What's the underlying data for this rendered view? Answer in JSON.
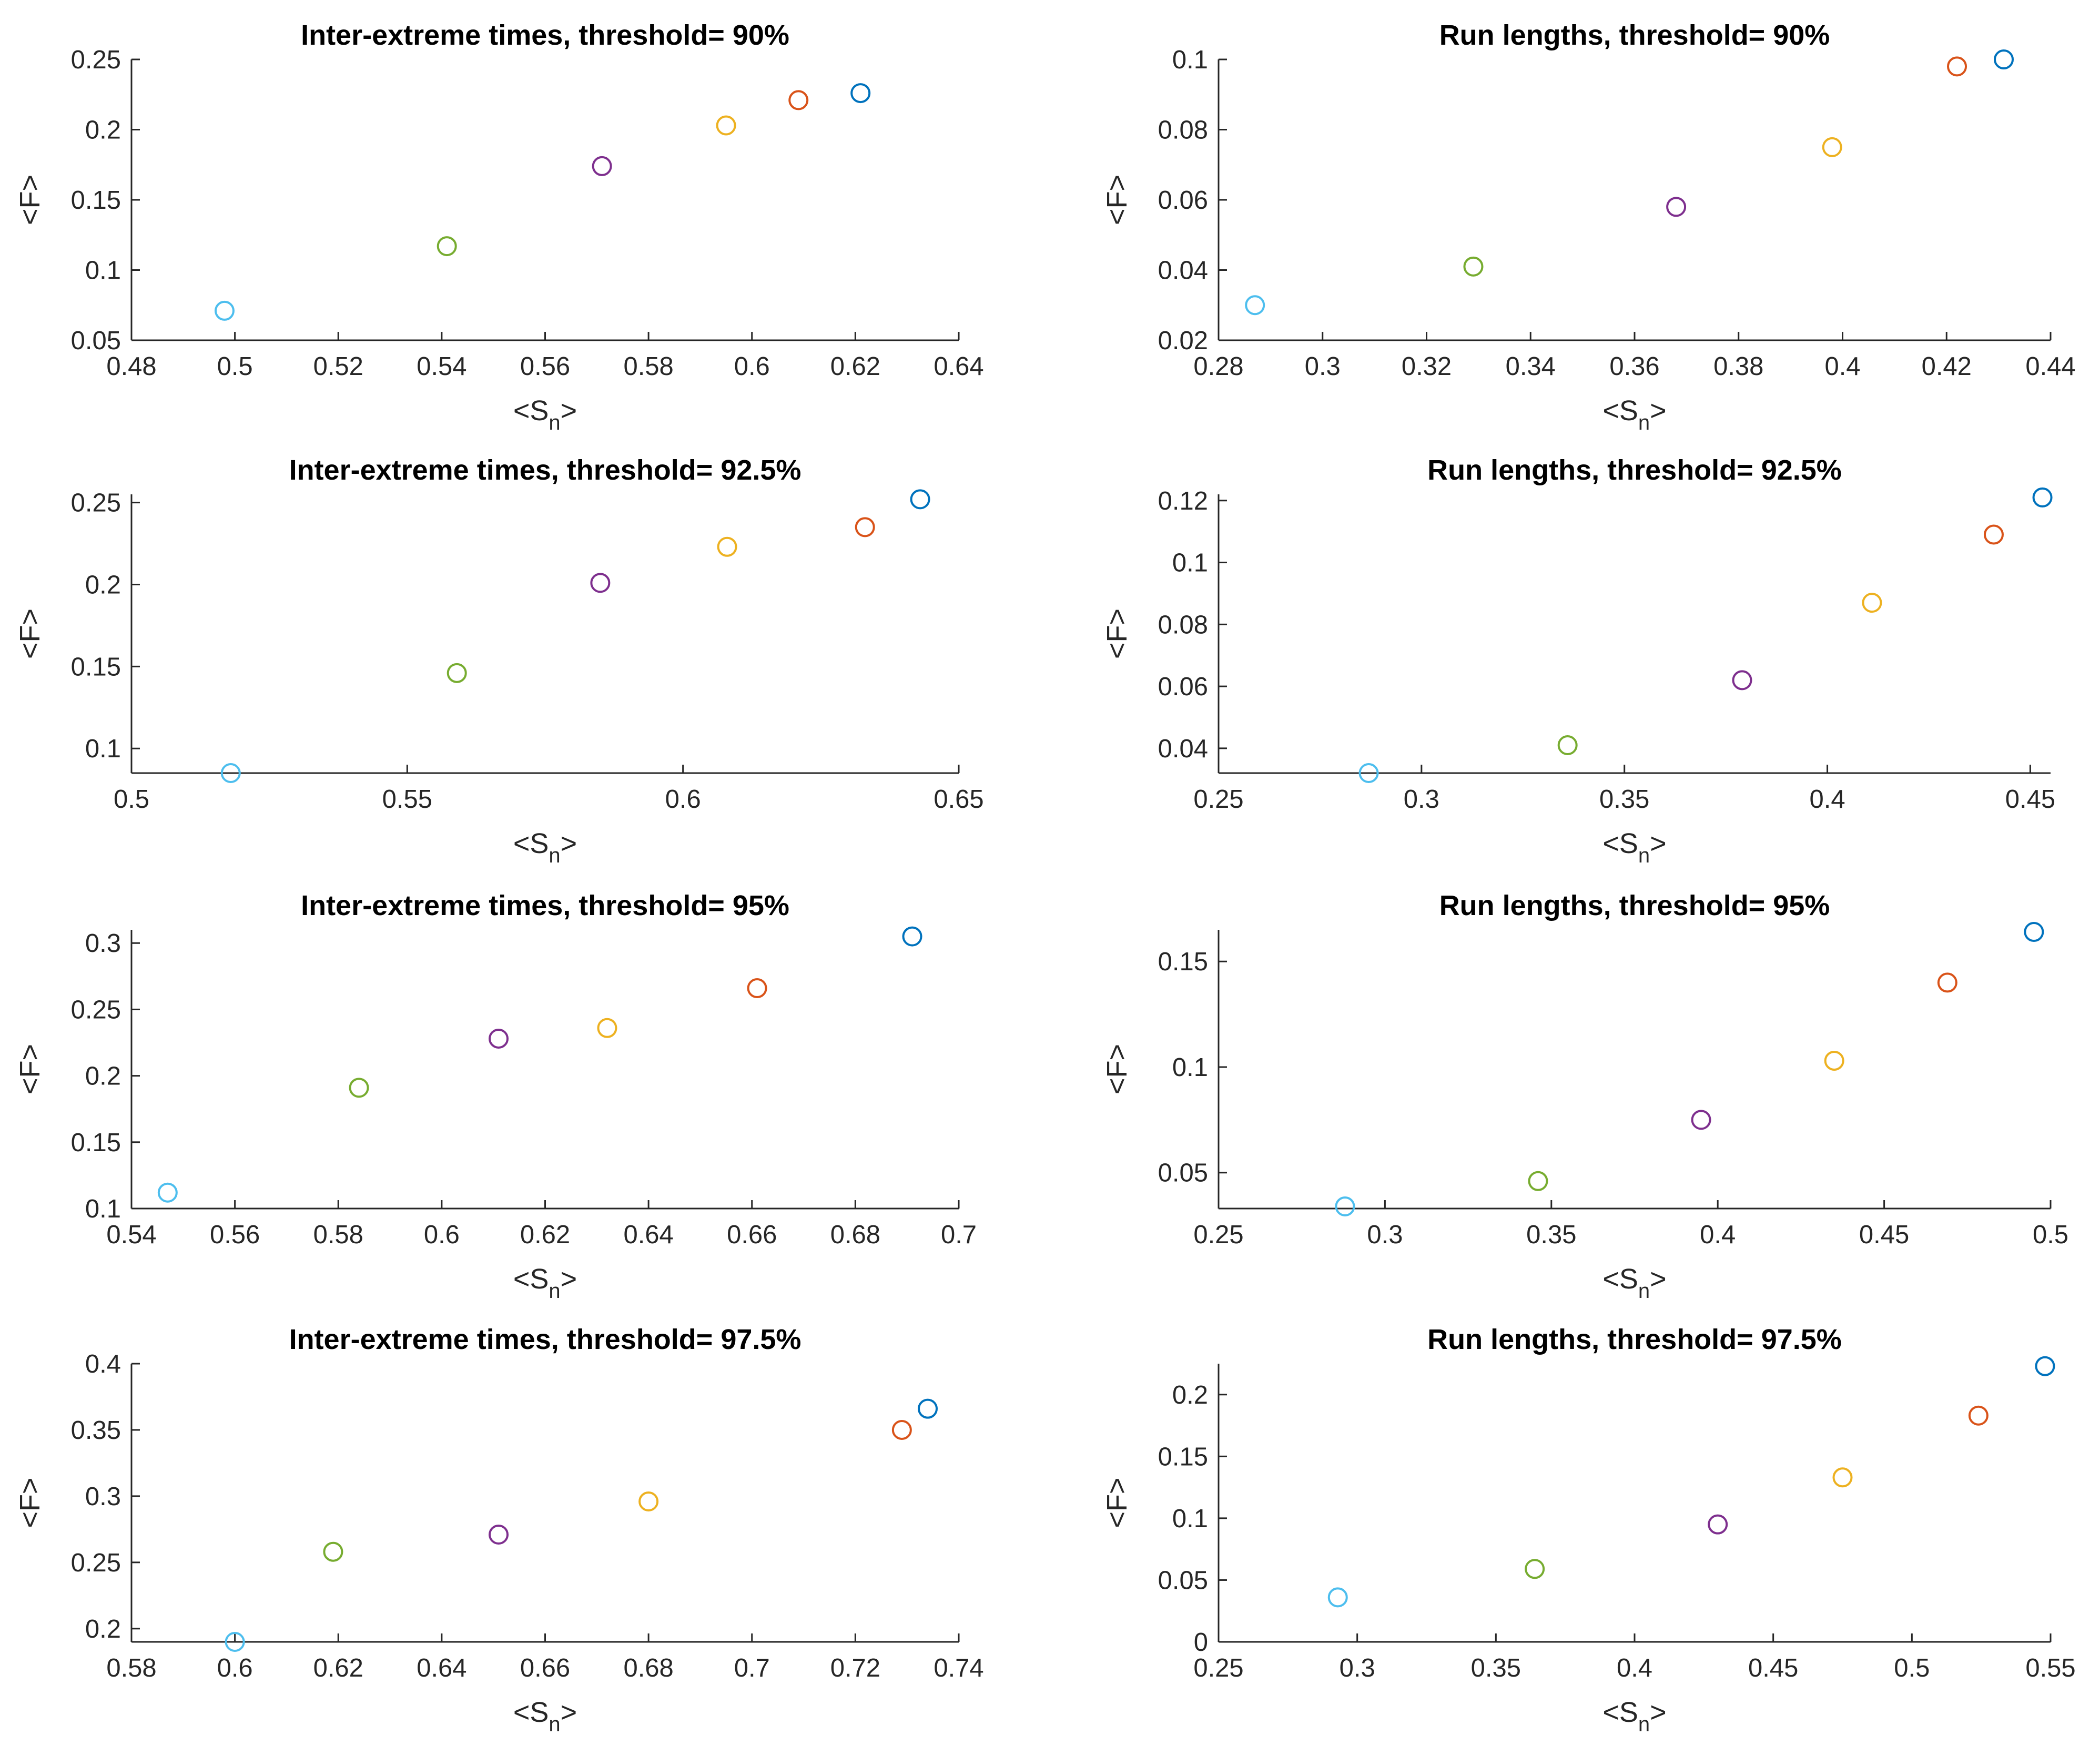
{
  "colors": [
    "#4DBEEE",
    "#77AC30",
    "#7E2F8E",
    "#EDB120",
    "#D95319",
    "#0072BD"
  ],
  "chart_data": [
    {
      "type": "scatter",
      "title": "Inter-extreme times, threshold= 90%",
      "xlabel": "<S",
      "xlabel_sub": "n",
      "xlabel_end": ">",
      "ylabel": "<F>",
      "x": [
        0.498,
        0.541,
        0.571,
        0.595,
        0.609,
        0.621
      ],
      "y": [
        0.071,
        0.117,
        0.174,
        0.203,
        0.221,
        0.226
      ],
      "xlim": [
        0.48,
        0.64
      ],
      "ylim": [
        0.05,
        0.25
      ],
      "xticks": [
        0.48,
        0.5,
        0.52,
        0.54,
        0.56,
        0.58,
        0.6,
        0.62,
        0.64
      ],
      "xtick_labels": [
        "0.48",
        "0.5",
        "0.52",
        "0.54",
        "0.56",
        "0.58",
        "0.6",
        "0.62",
        "0.64"
      ],
      "yticks": [
        0.05,
        0.1,
        0.15,
        0.2,
        0.25
      ],
      "ytick_labels": [
        "0.05",
        "0.1",
        "0.15",
        "0.2",
        "0.25"
      ]
    },
    {
      "type": "scatter",
      "title": "Run lengths, threshold= 90%",
      "xlabel": "<S",
      "xlabel_sub": "n",
      "xlabel_end": ">",
      "ylabel": "<F>",
      "x": [
        0.287,
        0.329,
        0.368,
        0.398,
        0.422,
        0.431
      ],
      "y": [
        0.03,
        0.041,
        0.058,
        0.075,
        0.098,
        0.1
      ],
      "xlim": [
        0.28,
        0.44
      ],
      "ylim": [
        0.02,
        0.1
      ],
      "xticks": [
        0.28,
        0.3,
        0.32,
        0.34,
        0.36,
        0.38,
        0.4,
        0.42,
        0.44
      ],
      "xtick_labels": [
        "0.28",
        "0.3",
        "0.32",
        "0.34",
        "0.36",
        "0.38",
        "0.4",
        "0.42",
        "0.44"
      ],
      "yticks": [
        0.02,
        0.04,
        0.06,
        0.08,
        0.1
      ],
      "ytick_labels": [
        "0.02",
        "0.04",
        "0.06",
        "0.08",
        "0.1"
      ]
    },
    {
      "type": "scatter",
      "title": "Inter-extreme times, threshold= 92.5%",
      "xlabel": "<S",
      "xlabel_sub": "n",
      "xlabel_end": ">",
      "ylabel": "<F>",
      "x": [
        0.518,
        0.559,
        0.585,
        0.608,
        0.633,
        0.643
      ],
      "y": [
        0.085,
        0.146,
        0.201,
        0.223,
        0.235,
        0.252
      ],
      "xlim": [
        0.5,
        0.65
      ],
      "ylim": [
        0.085,
        0.255
      ],
      "xticks": [
        0.5,
        0.55,
        0.6,
        0.65
      ],
      "xtick_labels": [
        "0.5",
        "0.55",
        "0.6",
        "0.65"
      ],
      "yticks": [
        0.1,
        0.15,
        0.2,
        0.25
      ],
      "ytick_labels": [
        "0.1",
        "0.15",
        "0.2",
        "0.25"
      ]
    },
    {
      "type": "scatter",
      "title": "Run lengths, threshold= 92.5%",
      "xlabel": "<S",
      "xlabel_sub": "n",
      "xlabel_end": ">",
      "ylabel": "<F>",
      "x": [
        0.287,
        0.336,
        0.379,
        0.411,
        0.441,
        0.453
      ],
      "y": [
        0.032,
        0.041,
        0.062,
        0.087,
        0.109,
        0.121
      ],
      "xlim": [
        0.25,
        0.455
      ],
      "ylim": [
        0.032,
        0.122
      ],
      "xticks": [
        0.25,
        0.3,
        0.35,
        0.4,
        0.45
      ],
      "xtick_labels": [
        "0.25",
        "0.3",
        "0.35",
        "0.4",
        "0.45"
      ],
      "yticks": [
        0.04,
        0.06,
        0.08,
        0.1,
        0.12
      ],
      "ytick_labels": [
        "0.04",
        "0.06",
        "0.08",
        "0.1",
        "0.12"
      ]
    },
    {
      "type": "scatter",
      "title": "Inter-extreme times, threshold= 95%",
      "xlabel": "<S",
      "xlabel_sub": "n",
      "xlabel_end": ">",
      "ylabel": "<F>",
      "x": [
        0.547,
        0.584,
        0.611,
        0.632,
        0.661,
        0.691
      ],
      "y": [
        0.112,
        0.191,
        0.228,
        0.236,
        0.266,
        0.305
      ],
      "xlim": [
        0.54,
        0.7
      ],
      "ylim": [
        0.1,
        0.31
      ],
      "xticks": [
        0.54,
        0.56,
        0.58,
        0.6,
        0.62,
        0.64,
        0.66,
        0.68,
        0.7
      ],
      "xtick_labels": [
        "0.54",
        "0.56",
        "0.58",
        "0.6",
        "0.62",
        "0.64",
        "0.66",
        "0.68",
        "0.7"
      ],
      "yticks": [
        0.1,
        0.15,
        0.2,
        0.25,
        0.3
      ],
      "ytick_labels": [
        "0.1",
        "0.15",
        "0.2",
        "0.25",
        "0.3"
      ]
    },
    {
      "type": "scatter",
      "title": "Run lengths, threshold= 95%",
      "xlabel": "<S",
      "xlabel_sub": "n",
      "xlabel_end": ">",
      "ylabel": "<F>",
      "x": [
        0.288,
        0.346,
        0.395,
        0.435,
        0.469,
        0.495
      ],
      "y": [
        0.034,
        0.046,
        0.075,
        0.103,
        0.14,
        0.164
      ],
      "xlim": [
        0.25,
        0.5
      ],
      "ylim": [
        0.033,
        0.165
      ],
      "xticks": [
        0.25,
        0.3,
        0.35,
        0.4,
        0.45,
        0.5
      ],
      "xtick_labels": [
        "0.25",
        "0.3",
        "0.35",
        "0.4",
        "0.45",
        "0.5"
      ],
      "yticks": [
        0.05,
        0.1,
        0.15
      ],
      "ytick_labels": [
        "0.05",
        "0.1",
        "0.15"
      ]
    },
    {
      "type": "scatter",
      "title": "Inter-extreme times, threshold= 97.5%",
      "xlabel": "<S",
      "xlabel_sub": "n",
      "xlabel_end": ">",
      "ylabel": "<F>",
      "x": [
        0.6,
        0.619,
        0.651,
        0.68,
        0.729,
        0.734
      ],
      "y": [
        0.19,
        0.258,
        0.271,
        0.296,
        0.35,
        0.366
      ],
      "xlim": [
        0.58,
        0.74
      ],
      "ylim": [
        0.19,
        0.4
      ],
      "xticks": [
        0.58,
        0.6,
        0.62,
        0.64,
        0.66,
        0.68,
        0.7,
        0.72,
        0.74
      ],
      "xtick_labels": [
        "0.58",
        "0.6",
        "0.62",
        "0.64",
        "0.66",
        "0.68",
        "0.7",
        "0.72",
        "0.74"
      ],
      "yticks": [
        0.2,
        0.25,
        0.3,
        0.35,
        0.4
      ],
      "ytick_labels": [
        "0.2",
        "0.25",
        "0.3",
        "0.35",
        "0.4"
      ]
    },
    {
      "type": "scatter",
      "title": "Run lengths, threshold= 97.5%",
      "xlabel": "<S",
      "xlabel_sub": "n",
      "xlabel_end": ">",
      "ylabel": "<F>",
      "x": [
        0.293,
        0.364,
        0.43,
        0.475,
        0.524,
        0.548
      ],
      "y": [
        0.036,
        0.059,
        0.095,
        0.133,
        0.183,
        0.223
      ],
      "xlim": [
        0.25,
        0.55
      ],
      "ylim": [
        0,
        0.225
      ],
      "xticks": [
        0.25,
        0.3,
        0.35,
        0.4,
        0.45,
        0.5,
        0.55
      ],
      "xtick_labels": [
        "0.25",
        "0.3",
        "0.35",
        "0.4",
        "0.45",
        "0.5",
        "0.55"
      ],
      "yticks": [
        0,
        0.05,
        0.1,
        0.15,
        0.2
      ],
      "ytick_labels": [
        "0",
        "0.05",
        "0.1",
        "0.15",
        "0.2"
      ]
    }
  ]
}
